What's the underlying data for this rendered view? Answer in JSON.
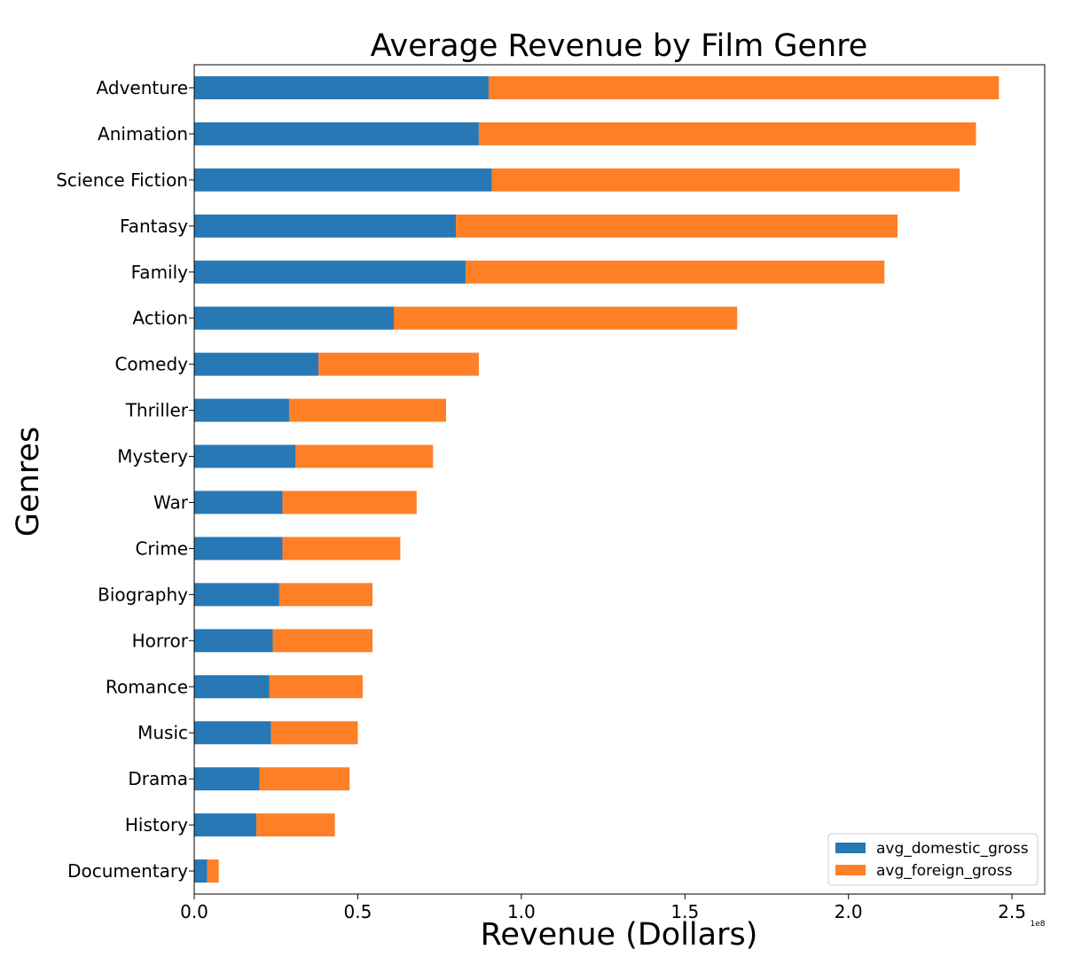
{
  "colors": {
    "domestic": "#2878b5",
    "foreign": "#ff7f27",
    "axis": "#000000",
    "legend_border": "#cccccc",
    "background": "#ffffff"
  },
  "chart_data": {
    "type": "bar",
    "orientation": "horizontal",
    "stacked": true,
    "title": "Average Revenue by Film Genre",
    "xlabel": "Revenue (Dollars)",
    "ylabel": "Genres",
    "x_offset_label": "1e8",
    "xlim": [
      0,
      2.6
    ],
    "x_ticks": [
      0.0,
      0.5,
      1.0,
      1.5,
      2.0,
      2.5
    ],
    "x_tick_labels": [
      "0.0",
      "0.5",
      "1.0",
      "1.5",
      "2.0",
      "2.5"
    ],
    "x_unit_multiplier": 100000000,
    "grid": false,
    "legend_position": "lower-right",
    "categories": [
      "Adventure",
      "Animation",
      "Science Fiction",
      "Fantasy",
      "Family",
      "Action",
      "Comedy",
      "Thriller",
      "Mystery",
      "War",
      "Crime",
      "Biography",
      "Horror",
      "Romance",
      "Music",
      "Drama",
      "History",
      "Documentary"
    ],
    "series": [
      {
        "name": "avg_domestic_gross",
        "color": "#2878b5",
        "values": [
          0.9,
          0.87,
          0.91,
          0.8,
          0.83,
          0.61,
          0.38,
          0.29,
          0.31,
          0.27,
          0.27,
          0.26,
          0.24,
          0.23,
          0.235,
          0.2,
          0.19,
          0.04
        ]
      },
      {
        "name": "avg_foreign_gross",
        "color": "#ff7f27",
        "values": [
          1.56,
          1.52,
          1.43,
          1.35,
          1.28,
          1.05,
          0.49,
          0.48,
          0.42,
          0.41,
          0.36,
          0.285,
          0.305,
          0.285,
          0.265,
          0.275,
          0.24,
          0.035
        ]
      }
    ]
  }
}
